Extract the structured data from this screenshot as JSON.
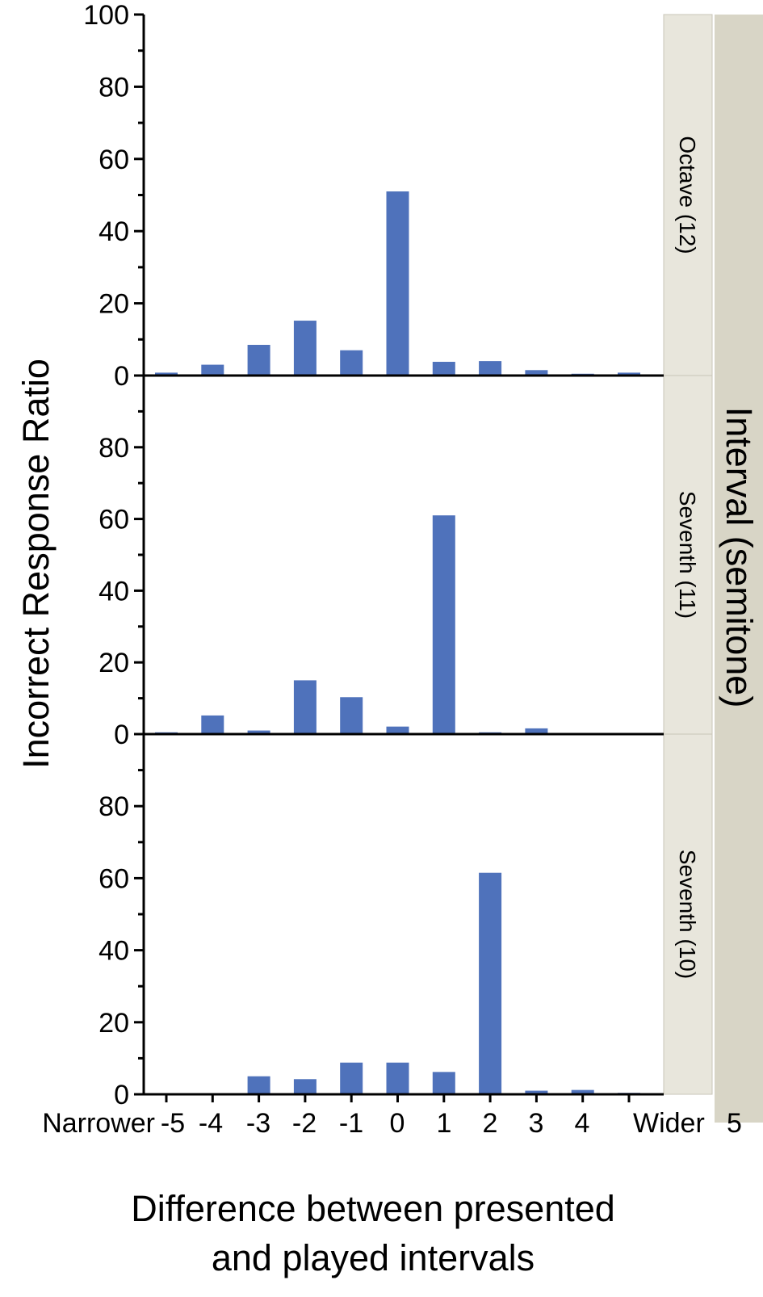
{
  "chart_data": {
    "type": "bar",
    "ylabel": "Incorrect Response Ratio",
    "xlabel_lines": [
      "Difference between presented",
      "and played intervals"
    ],
    "facet_title": "Interval (semitone)",
    "x_tick_labels": [
      "Narrower",
      "-5",
      "-4",
      "-3",
      "-2",
      "-1",
      "0",
      "1",
      "2",
      "3",
      "4",
      "Wider",
      "5"
    ],
    "categories": [
      -5,
      -4,
      -3,
      -2,
      -1,
      0,
      1,
      2,
      3,
      4,
      5
    ],
    "ylim": [
      0,
      100
    ],
    "y_ticks_top_panel": [
      0,
      20,
      40,
      60,
      80,
      100
    ],
    "y_ticks_other_panels": [
      0,
      20,
      40,
      60,
      80
    ],
    "bar_color": "#4f72bb",
    "strip_color": "#e8e6dc",
    "outer_strip_color": "#d8d5c6",
    "legend": "none",
    "grid": false,
    "series": [
      {
        "name": "Octave (12)",
        "values": [
          0.8,
          3.0,
          8.5,
          15.2,
          7.0,
          51.0,
          3.8,
          4.0,
          1.5,
          0.5,
          0.8
        ]
      },
      {
        "name": "Seventh (11)",
        "values": [
          0.5,
          5.2,
          1.0,
          15.0,
          10.3,
          2.1,
          61.0,
          0.5,
          1.6,
          0,
          0.3
        ]
      },
      {
        "name": "Seventh (10)",
        "values": [
          0.2,
          0.2,
          5.0,
          4.2,
          8.8,
          8.8,
          6.2,
          61.5,
          1.0,
          1.2,
          0.4
        ]
      }
    ]
  }
}
